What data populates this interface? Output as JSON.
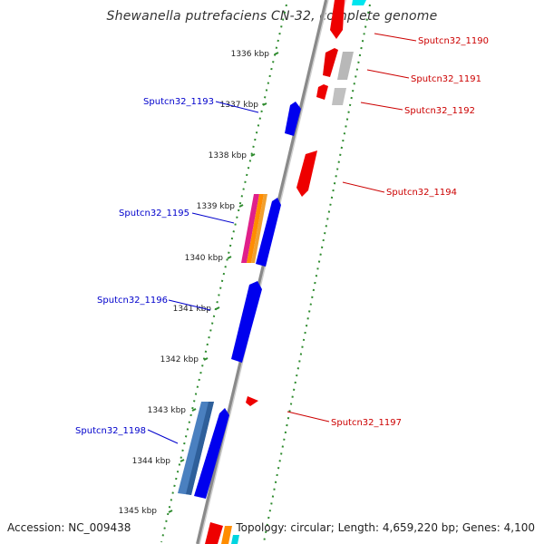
{
  "title": "Shewanella putrefaciens CN-32, complete genome",
  "footer": {
    "accession": "Accession: NC_009438",
    "topology": "Topology: circular; Length: 4,659,220 bp; Genes: 4,100"
  },
  "colors": {
    "backbone": "#8a8a8a",
    "ticks": "#2e8b2e",
    "forward_gene": "#0000ff",
    "reverse_gene": "#ff0000",
    "pseudo_gene": "#b0b0b0",
    "forward_label": "#0000cc",
    "reverse_label": "#cc0000"
  },
  "ticks": [
    {
      "label": "1336 kbp"
    },
    {
      "label": "1337 kbp"
    },
    {
      "label": "1338 kbp"
    },
    {
      "label": "1339 kbp"
    },
    {
      "label": "1340 kbp"
    },
    {
      "label": "1341 kbp"
    },
    {
      "label": "1342 kbp"
    },
    {
      "label": "1343 kbp"
    },
    {
      "label": "1344 kbp"
    },
    {
      "label": "1345 kbp"
    }
  ],
  "forward_labels": [
    {
      "id": "Sputcn32_1193"
    },
    {
      "id": "Sputcn32_1195"
    },
    {
      "id": "Sputcn32_1196"
    },
    {
      "id": "Sputcn32_1198"
    }
  ],
  "reverse_labels": [
    {
      "id": "Sputcn32_1190"
    },
    {
      "id": "Sputcn32_1191"
    },
    {
      "id": "Sputcn32_1192"
    },
    {
      "id": "Sputcn32_1194"
    },
    {
      "id": "Sputcn32_1197"
    }
  ]
}
